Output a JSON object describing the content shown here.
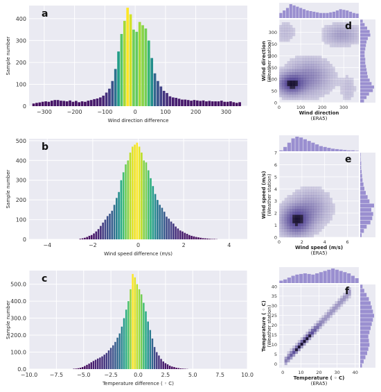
{
  "chart_data": [
    {
      "id": "a",
      "type": "bar",
      "panel_label": "a",
      "xlabel": "Wind direction difference",
      "ylabel": "Sample number",
      "xlim": [
        -350,
        370
      ],
      "ylim": [
        0,
        460
      ],
      "xticks": [
        -300,
        -200,
        -100,
        0,
        100,
        200,
        300
      ],
      "yticks": [
        0,
        100,
        200,
        300,
        400
      ],
      "bin_width": 10,
      "bins_x": [
        -335,
        -325,
        -315,
        -305,
        -295,
        -285,
        -275,
        -265,
        -255,
        -245,
        -235,
        -225,
        -215,
        -205,
        -195,
        -185,
        -175,
        -165,
        -155,
        -145,
        -135,
        -125,
        -115,
        -105,
        -95,
        -85,
        -75,
        -65,
        -55,
        -45,
        -35,
        -25,
        -15,
        -5,
        5,
        15,
        25,
        35,
        45,
        55,
        65,
        75,
        85,
        95,
        105,
        115,
        125,
        135,
        145,
        155,
        165,
        175,
        185,
        195,
        205,
        215,
        225,
        235,
        245,
        255,
        265,
        275,
        285,
        295,
        305,
        315,
        325,
        335,
        345
      ],
      "values": [
        12,
        15,
        17,
        20,
        22,
        20,
        25,
        28,
        28,
        25,
        24,
        22,
        26,
        20,
        24,
        18,
        22,
        20,
        25,
        28,
        32,
        35,
        40,
        48,
        62,
        80,
        115,
        170,
        250,
        330,
        390,
        450,
        420,
        350,
        340,
        385,
        370,
        355,
        300,
        220,
        150,
        115,
        90,
        70,
        60,
        45,
        40,
        38,
        34,
        30,
        30,
        28,
        25,
        28,
        26,
        24,
        26,
        22,
        24,
        22,
        22,
        22,
        25,
        20,
        20,
        22,
        18,
        15,
        18
      ]
    },
    {
      "id": "b",
      "type": "bar",
      "panel_label": "b",
      "xlabel": "Wind speed difference (m/s)",
      "ylabel": "Sample number",
      "xlim": [
        -4.8,
        4.8
      ],
      "ylim": [
        0,
        510
      ],
      "xticks": [
        -4,
        -2,
        0,
        2,
        4
      ],
      "yticks": [
        0,
        100,
        200,
        300,
        400,
        500
      ],
      "bin_width": 0.1,
      "bins_x": [
        -2.55,
        -2.45,
        -2.35,
        -2.25,
        -2.15,
        -2.05,
        -1.95,
        -1.85,
        -1.75,
        -1.65,
        -1.55,
        -1.45,
        -1.35,
        -1.25,
        -1.15,
        -1.05,
        -0.95,
        -0.85,
        -0.75,
        -0.65,
        -0.55,
        -0.45,
        -0.35,
        -0.25,
        -0.15,
        -0.05,
        0.05,
        0.15,
        0.25,
        0.35,
        0.45,
        0.55,
        0.65,
        0.75,
        0.85,
        0.95,
        1.05,
        1.15,
        1.25,
        1.35,
        1.45,
        1.55,
        1.65,
        1.75,
        1.85,
        1.95,
        2.05,
        2.15,
        2.25,
        2.35,
        2.45,
        2.55,
        2.65,
        2.75,
        2.85,
        2.95,
        3.05,
        3.15,
        3.25,
        3.35,
        3.45
      ],
      "values": [
        3,
        5,
        8,
        12,
        18,
        22,
        30,
        40,
        52,
        68,
        85,
        100,
        118,
        130,
        145,
        175,
        210,
        240,
        300,
        340,
        380,
        400,
        440,
        470,
        480,
        490,
        470,
        440,
        400,
        390,
        350,
        310,
        270,
        230,
        200,
        175,
        160,
        140,
        115,
        105,
        90,
        80,
        65,
        55,
        45,
        40,
        33,
        28,
        22,
        18,
        15,
        12,
        10,
        8,
        6,
        5,
        4,
        3,
        2,
        2,
        1
      ]
    },
    {
      "id": "c",
      "type": "bar",
      "panel_label": "c",
      "xlabel": "Temperature difference ( ◦ C)",
      "ylabel": "Sample number",
      "xlim": [
        -10,
        10
      ],
      "ylim": [
        0,
        580
      ],
      "xticks": [
        -10.0,
        -7.5,
        -5.0,
        -2.5,
        0.0,
        2.5,
        5.0,
        7.5,
        10.0
      ],
      "yticks": [
        0,
        100,
        200,
        300,
        400,
        500
      ],
      "bin_width": 0.2,
      "bins_x": [
        -5.9,
        -5.7,
        -5.5,
        -5.3,
        -5.1,
        -4.9,
        -4.7,
        -4.5,
        -4.3,
        -4.1,
        -3.9,
        -3.7,
        -3.5,
        -3.3,
        -3.1,
        -2.9,
        -2.7,
        -2.5,
        -2.3,
        -2.1,
        -1.9,
        -1.7,
        -1.5,
        -1.3,
        -1.1,
        -0.9,
        -0.7,
        -0.5,
        -0.3,
        -0.1,
        0.1,
        0.3,
        0.5,
        0.7,
        0.9,
        1.1,
        1.3,
        1.5,
        1.7,
        1.9,
        2.1,
        2.3,
        2.5,
        2.7,
        2.9,
        3.1,
        3.3,
        3.5,
        3.7,
        3.9,
        4.1,
        4.3,
        4.5
      ],
      "values": [
        2,
        3,
        5,
        8,
        12,
        18,
        25,
        32,
        40,
        48,
        55,
        62,
        68,
        75,
        85,
        95,
        110,
        125,
        140,
        160,
        185,
        210,
        250,
        300,
        350,
        400,
        470,
        560,
        540,
        500,
        470,
        440,
        390,
        340,
        280,
        230,
        180,
        130,
        100,
        80,
        60,
        45,
        35,
        28,
        20,
        15,
        12,
        8,
        6,
        4,
        3,
        2,
        1
      ]
    },
    {
      "id": "d",
      "type": "heatmap",
      "panel_label": "d",
      "xlabel": "Wind direction (ERA5)",
      "ylabel": "Wind direction (Weather station)",
      "xlim": [
        0,
        370
      ],
      "ylim": [
        0,
        355
      ],
      "xticks": [
        0,
        100,
        200,
        300
      ],
      "yticks": [
        0,
        50,
        100,
        150,
        200,
        250,
        300
      ],
      "clusters": [
        {
          "x": 55,
          "y": 80,
          "sx": 40,
          "sy": 28,
          "w": 1.0
        },
        {
          "x": 140,
          "y": 110,
          "sx": 60,
          "sy": 45,
          "w": 0.45
        },
        {
          "x": 290,
          "y": 290,
          "sx": 50,
          "sy": 28,
          "w": 0.3
        },
        {
          "x": 30,
          "y": 300,
          "sx": 30,
          "sy": 30,
          "w": 0.12
        },
        {
          "x": 320,
          "y": 60,
          "sx": 25,
          "sy": 40,
          "w": 0.1
        }
      ],
      "marginal_x": [
        8,
        12,
        16,
        22,
        20,
        18,
        16,
        14,
        12,
        11,
        10,
        9,
        8,
        8,
        8,
        9,
        10,
        12,
        14,
        13,
        12,
        10,
        8,
        7
      ],
      "marginal_y": [
        6,
        10,
        14,
        20,
        22,
        18,
        15,
        12,
        11,
        10,
        9,
        8,
        8,
        7,
        7,
        8,
        9,
        10,
        12,
        16,
        15,
        11,
        7,
        4
      ]
    },
    {
      "id": "e",
      "type": "heatmap",
      "panel_label": "e",
      "xlabel": "Wind speed (m/s) (ERA5)",
      "ylabel": "Wind speed (m/s) (Weather station)",
      "xlim": [
        0,
        7
      ],
      "ylim": [
        0,
        7
      ],
      "xticks": [
        0,
        2,
        4,
        6
      ],
      "yticks": [
        0,
        1,
        2,
        3,
        4,
        5,
        6,
        7
      ],
      "clusters": [
        {
          "x": 1.5,
          "y": 1.4,
          "sx": 0.8,
          "sy": 0.75,
          "w": 1.0
        },
        {
          "x": 2.8,
          "y": 2.4,
          "sx": 1.0,
          "sy": 0.9,
          "w": 0.35
        }
      ],
      "marginal_x": [
        2,
        10,
        20,
        30,
        34,
        32,
        28,
        24,
        20,
        16,
        12,
        10,
        8,
        6,
        5,
        4,
        3,
        2,
        2,
        1
      ],
      "marginal_y": [
        3,
        8,
        14,
        22,
        26,
        28,
        24,
        30,
        20,
        16,
        12,
        9,
        7,
        5,
        4,
        3,
        2,
        2,
        1,
        1
      ]
    },
    {
      "id": "f",
      "type": "heatmap",
      "panel_label": "f",
      "xlabel": "Temperature ( ◦ C) (ERA5)",
      "ylabel": "Temperature ( ◦ C) (Weather station)",
      "xlim": [
        -2,
        42
      ],
      "ylim": [
        -2,
        41
      ],
      "xticks": [
        0,
        10,
        20,
        30,
        40
      ],
      "yticks": [
        0,
        5,
        10,
        15,
        20,
        25,
        30,
        35,
        40
      ],
      "diagonal": {
        "x0": 2,
        "x1": 37,
        "spread": 1.2
      },
      "marginal_x": [
        4,
        6,
        9,
        12,
        14,
        15,
        16,
        15,
        14,
        16,
        18,
        20,
        22,
        24,
        22,
        20,
        18,
        16,
        12,
        8
      ],
      "marginal_y": [
        3,
        6,
        9,
        12,
        14,
        16,
        15,
        14,
        16,
        18,
        20,
        22,
        24,
        22,
        20,
        18,
        15,
        11,
        7,
        4
      ]
    }
  ]
}
